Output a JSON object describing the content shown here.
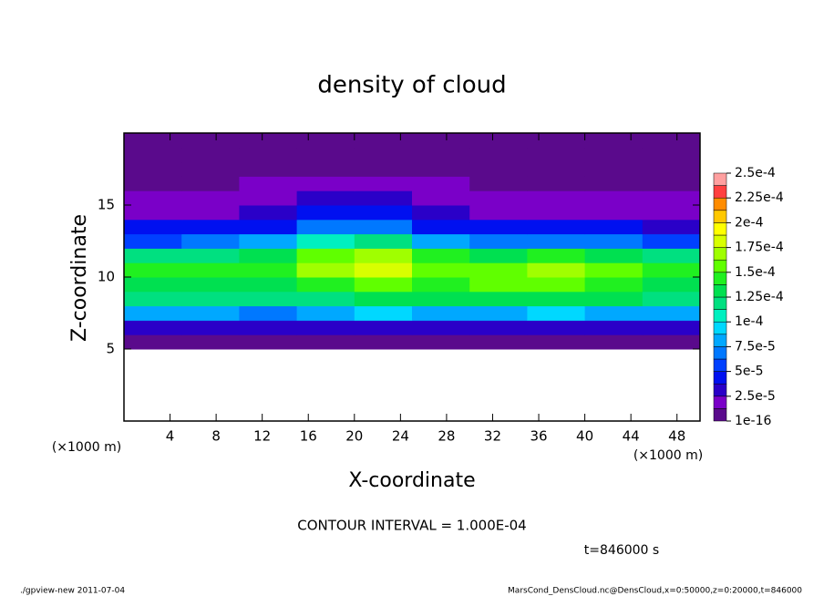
{
  "chart_data": {
    "type": "heatmap",
    "title": "density of cloud",
    "xlabel": "X-coordinate",
    "ylabel": "Z-coordinate",
    "x_unit_left": "(×1000 m)",
    "x_unit_right": "(×1000 m)",
    "contour_note": "CONTOUR INTERVAL = 1.000E-04",
    "time_note": "t=846000 s",
    "footer_left": "./gpview-new  2011-07-04",
    "footer_right": "MarsCond_DensCloud.nc@DensCloud,x=0:50000,z=0:20000,t=846000",
    "xlim": [
      0,
      50
    ],
    "ylim": [
      0,
      20
    ],
    "xticks": [
      4,
      8,
      12,
      16,
      20,
      24,
      28,
      32,
      36,
      40,
      44,
      48
    ],
    "yticks": [
      5,
      10,
      15
    ],
    "x": [
      2.5,
      7.5,
      12.5,
      17.5,
      22.5,
      27.5,
      32.5,
      37.5,
      42.5,
      47.5
    ],
    "y": [
      0.5,
      1.5,
      2.5,
      3.5,
      4.5,
      5.5,
      6.5,
      7.5,
      8.5,
      9.5,
      10.5,
      11.5,
      12.5,
      13.5,
      14.5,
      15.5,
      16.5,
      17.5,
      18.5,
      19.5
    ],
    "z": [
      [
        null,
        null,
        null,
        null,
        null,
        null,
        null,
        null,
        null,
        null
      ],
      [
        null,
        null,
        null,
        null,
        null,
        null,
        null,
        null,
        null,
        null
      ],
      [
        null,
        null,
        null,
        null,
        null,
        null,
        null,
        null,
        null,
        null
      ],
      [
        null,
        null,
        null,
        null,
        null,
        null,
        null,
        null,
        null,
        null
      ],
      [
        null,
        null,
        null,
        null,
        null,
        null,
        null,
        null,
        null,
        null
      ],
      [
        8e-06,
        8e-06,
        8e-06,
        8e-06,
        8e-06,
        8e-06,
        8e-06,
        8e-06,
        8e-06,
        8e-06
      ],
      [
        3e-05,
        3.5e-05,
        3e-05,
        3e-05,
        3.5e-05,
        3e-05,
        3e-05,
        3.5e-05,
        3e-05,
        3e-05
      ],
      [
        8e-05,
        8e-05,
        7.5e-05,
        8e-05,
        9e-05,
        8.5e-05,
        8e-05,
        9e-05,
        8.5e-05,
        8e-05
      ],
      [
        0.000115,
        0.00012,
        0.000115,
        0.000125,
        0.000135,
        0.00013,
        0.00013,
        0.000135,
        0.00013,
        0.00012
      ],
      [
        0.00013,
        0.000135,
        0.000135,
        0.00015,
        0.00016,
        0.00015,
        0.000155,
        0.00016,
        0.00015,
        0.000135
      ],
      [
        0.00014,
        0.000145,
        0.00014,
        0.000165,
        0.00018,
        0.00016,
        0.00016,
        0.00017,
        0.000155,
        0.00014
      ],
      [
        0.00012,
        0.000125,
        0.00013,
        0.000155,
        0.000165,
        0.00014,
        0.000135,
        0.00014,
        0.00013,
        0.00012
      ],
      [
        6e-05,
        6.5e-05,
        8e-05,
        0.00011,
        0.000115,
        8e-05,
        7e-05,
        7e-05,
        6.5e-05,
        6e-05
      ],
      [
        4e-05,
        4e-05,
        5e-05,
        7e-05,
        7.5e-05,
        5e-05,
        4e-05,
        4e-05,
        4e-05,
        3.5e-05
      ],
      [
        2.5e-05,
        2.5e-05,
        3.5e-05,
        4.5e-05,
        4.5e-05,
        3.5e-05,
        2.5e-05,
        2.5e-05,
        2.5e-05,
        2.5e-05
      ],
      [
        1.8e-05,
        1.8e-05,
        2.5e-05,
        3e-05,
        3e-05,
        2.5e-05,
        1.8e-05,
        1.8e-05,
        1.8e-05,
        1.8e-05
      ],
      [
        1.1e-05,
        1.1e-05,
        1.4e-05,
        2e-05,
        2e-05,
        1.4e-05,
        1.1e-05,
        1.1e-05,
        1.1e-05,
        1.1e-05
      ],
      [
        8e-06,
        8e-06,
        8e-06,
        8e-06,
        8e-06,
        8e-06,
        8e-06,
        8e-06,
        8e-06,
        8e-06
      ],
      [
        6e-06,
        6e-06,
        6e-06,
        6e-06,
        6e-06,
        6e-06,
        6e-06,
        6e-06,
        6e-06,
        6e-06
      ],
      [
        5e-06,
        5e-06,
        5e-06,
        5e-06,
        5e-06,
        5e-06,
        5e-06,
        5e-06,
        5e-06,
        5e-06
      ]
    ],
    "colorbar_ticks": [
      {
        "value": 1e-16,
        "label": "1e-16"
      },
      {
        "value": 2.5e-05,
        "label": "2.5e-5"
      },
      {
        "value": 5e-05,
        "label": "5e-5"
      },
      {
        "value": 7.5e-05,
        "label": "7.5e-5"
      },
      {
        "value": 0.0001,
        "label": "1e-4"
      },
      {
        "value": 0.000125,
        "label": "1.25e-4"
      },
      {
        "value": 0.00015,
        "label": "1.5e-4"
      },
      {
        "value": 0.000175,
        "label": "1.75e-4"
      },
      {
        "value": 0.0002,
        "label": "2e-4"
      },
      {
        "value": 0.000225,
        "label": "2.25e-4"
      },
      {
        "value": 0.00025,
        "label": "2.5e-4"
      }
    ],
    "colors": [
      "#5a0a8c",
      "#7a00c8",
      "#2a00c8",
      "#0010f0",
      "#0040ff",
      "#0078ff",
      "#00a8ff",
      "#00d8ff",
      "#00f0c0",
      "#00e080",
      "#00e050",
      "#20f020",
      "#60ff00",
      "#a0ff00",
      "#d8ff00",
      "#ffff00",
      "#ffc800",
      "#ff8c00",
      "#ff4040",
      "#ffa0a0"
    ]
  }
}
